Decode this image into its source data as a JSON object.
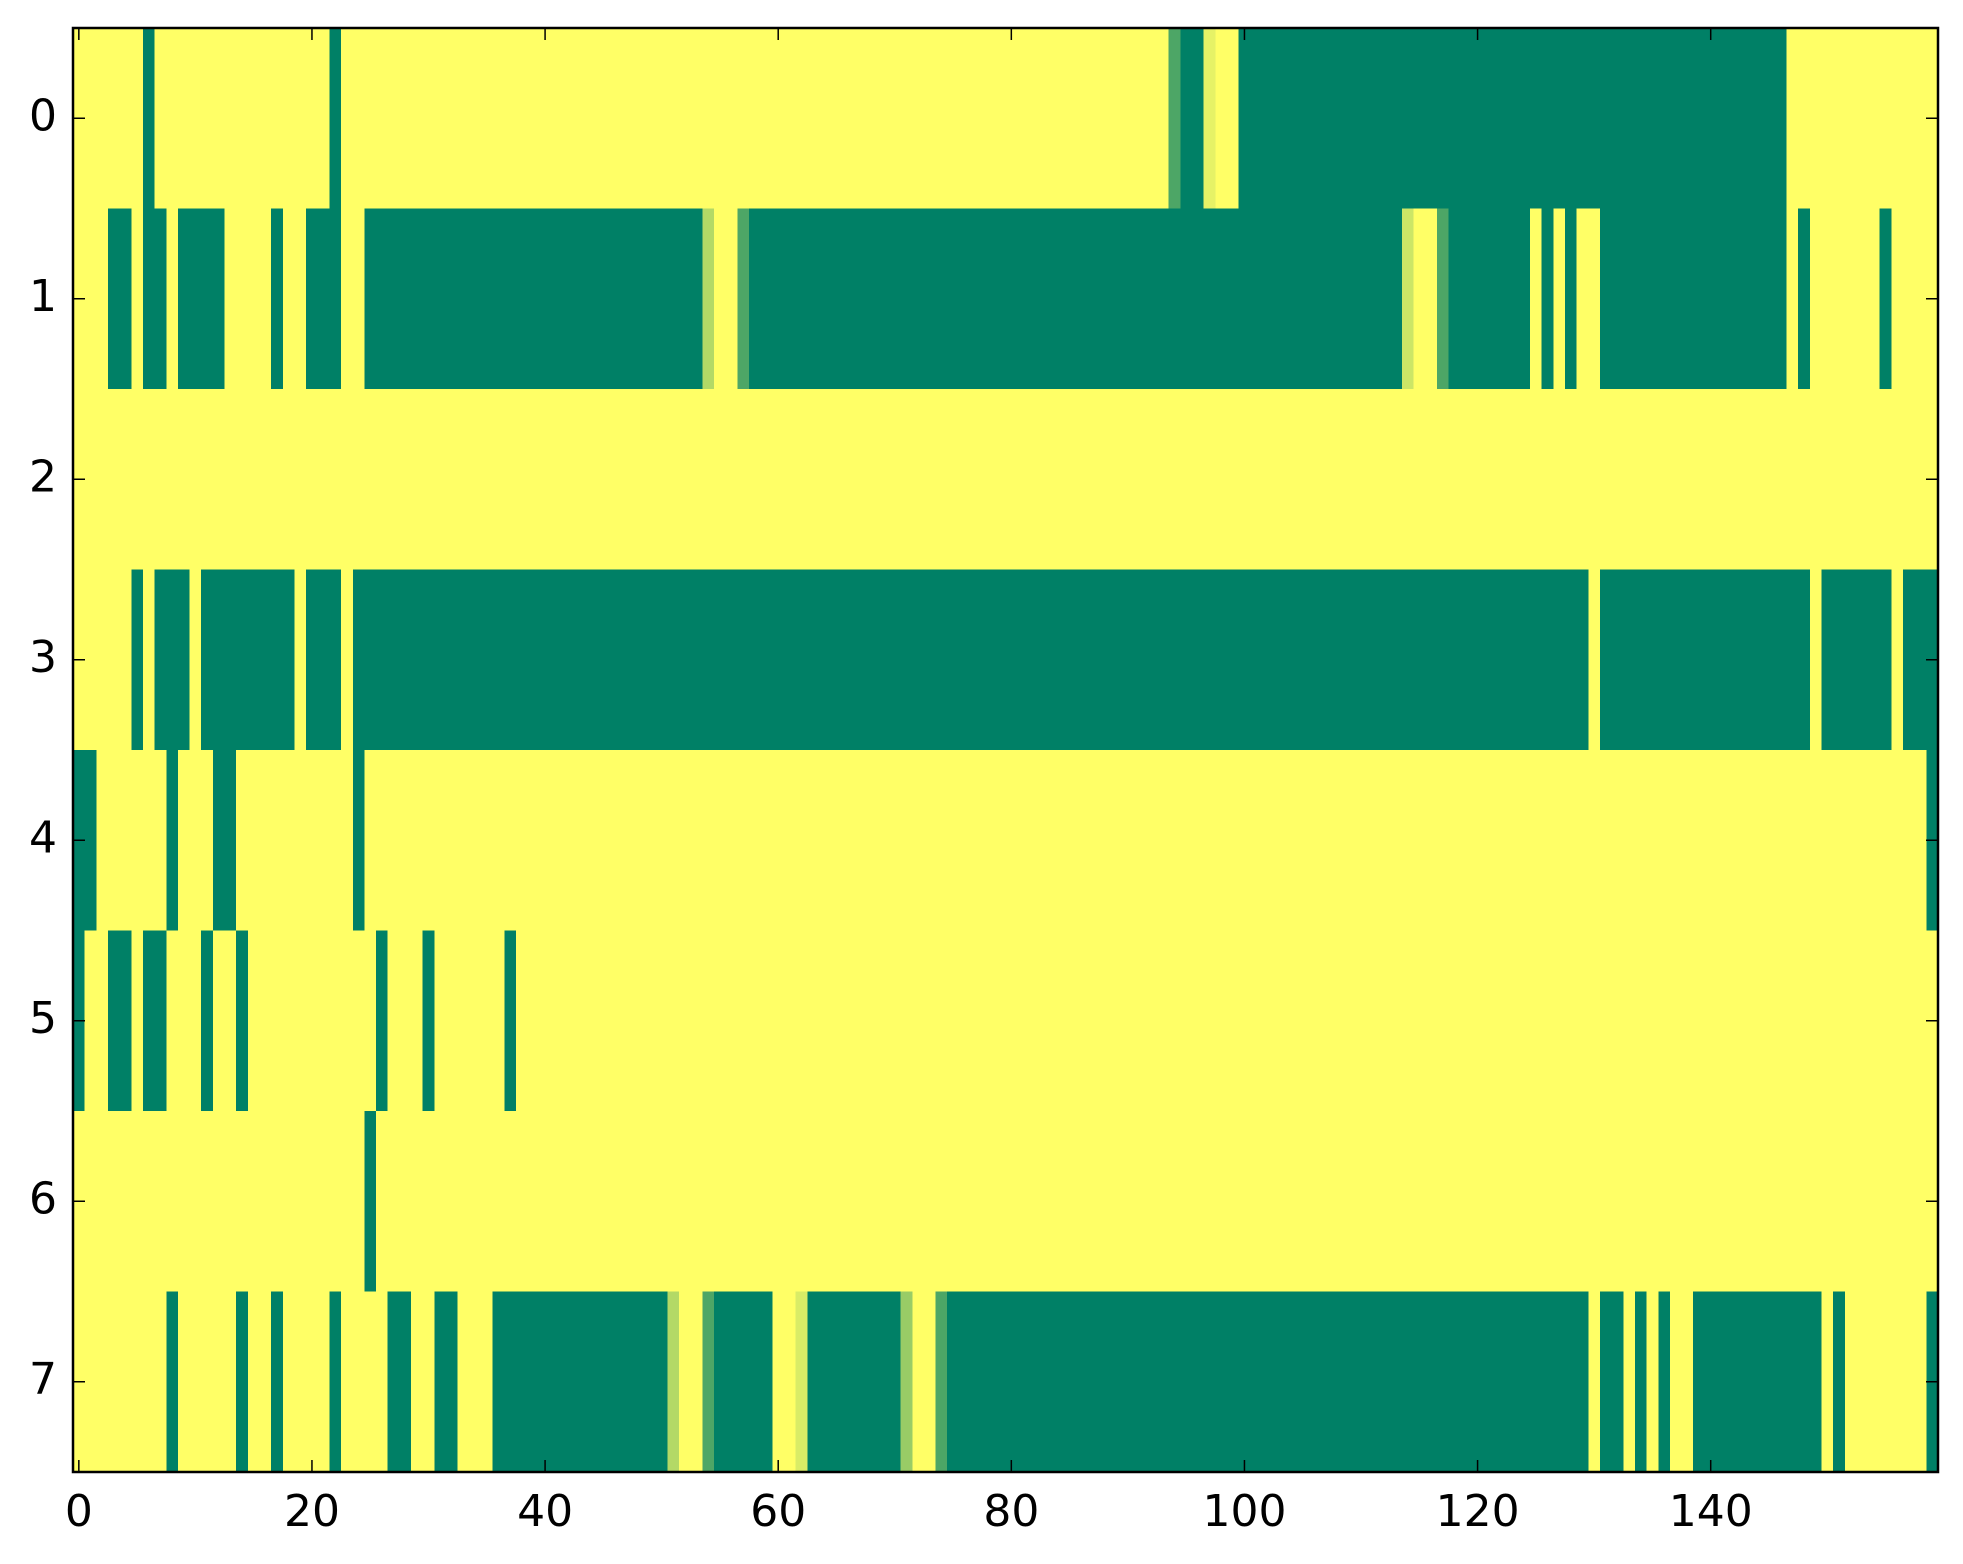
{
  "chart_data": {
    "type": "heatmap",
    "colors": [
      "#008066",
      "#ffff66"
    ],
    "clim": [
      0,
      1
    ],
    "xlim": [
      -0.5,
      159.5
    ],
    "ylim": [
      -0.5,
      7.5
    ],
    "xticks": [
      0,
      20,
      40,
      60,
      80,
      100,
      120,
      140
    ],
    "yticks": [
      0,
      1,
      2,
      3,
      4,
      5,
      6,
      7
    ],
    "z": [
      [
        1,
        1,
        1,
        1,
        1,
        1,
        0,
        1,
        1,
        1,
        1,
        1,
        1,
        1,
        1,
        1,
        1,
        1,
        1,
        1,
        1,
        1,
        0,
        1,
        1,
        1,
        1,
        1,
        1,
        1,
        1,
        1,
        1,
        1,
        1,
        1,
        1,
        1,
        1,
        1,
        1,
        1,
        1,
        1,
        1,
        1,
        1,
        1,
        1,
        1,
        1,
        1,
        1,
        1,
        1,
        1,
        1,
        1,
        1,
        1,
        1,
        1,
        1,
        1,
        1,
        1,
        1,
        1,
        1,
        1,
        1,
        1,
        1,
        1,
        1,
        1,
        1,
        1,
        1,
        1,
        1,
        1,
        1,
        1,
        1,
        1,
        1,
        1,
        1,
        1,
        1,
        1,
        1,
        1,
        0.3,
        0,
        0,
        0.9,
        1,
        1,
        0,
        0,
        0,
        0,
        0,
        0,
        0,
        0,
        0,
        0,
        0,
        0,
        0,
        0,
        0,
        0,
        0,
        0,
        0,
        0,
        0,
        0,
        0,
        0,
        0,
        0,
        0,
        0,
        0,
        0,
        0,
        0,
        0,
        0,
        0,
        0,
        0,
        0,
        0,
        0,
        0,
        0,
        0,
        0,
        0,
        0,
        0,
        1,
        1,
        1,
        1,
        1,
        1,
        1,
        1,
        1,
        1,
        1,
        1,
        1
      ],
      [
        1,
        1,
        1,
        0,
        0,
        1,
        0,
        0,
        1,
        0,
        0,
        0,
        0,
        1,
        1,
        1,
        1,
        0,
        1,
        1,
        0,
        0,
        0,
        1,
        1,
        0,
        0,
        0,
        0,
        0,
        0,
        0,
        0,
        0,
        0,
        0,
        0,
        0,
        0,
        0,
        0,
        0,
        0,
        0,
        0,
        0,
        0,
        0,
        0,
        0,
        0,
        0,
        0,
        0,
        0.7,
        1,
        1,
        0.3,
        0,
        0,
        0,
        0,
        0,
        0,
        0,
        0,
        0,
        0,
        0,
        0,
        0,
        0,
        0,
        0,
        0,
        0,
        0,
        0,
        0,
        0,
        0,
        0,
        0,
        0,
        0,
        0,
        0,
        0,
        0,
        0,
        0,
        0,
        0,
        0,
        0,
        0,
        0,
        0,
        0,
        0,
        0,
        0,
        0,
        0,
        0,
        0,
        0,
        0,
        0,
        0,
        0,
        0,
        0,
        0,
        0.8,
        1,
        1,
        0.3,
        0,
        0,
        0,
        0,
        0,
        0,
        0,
        1,
        0,
        1,
        0,
        1,
        1,
        0,
        0,
        0,
        0,
        0,
        0,
        0,
        0,
        0,
        0,
        0,
        0,
        0,
        0,
        0,
        0,
        1,
        0,
        1,
        1,
        1,
        1,
        1,
        1,
        0,
        1,
        1,
        1,
        1
      ],
      [
        1,
        1,
        1,
        1,
        1,
        1,
        1,
        1,
        1,
        1,
        1,
        1,
        1,
        1,
        1,
        1,
        1,
        1,
        1,
        1,
        1,
        1,
        1,
        1,
        1,
        1,
        1,
        1,
        1,
        1,
        1,
        1,
        1,
        1,
        1,
        1,
        1,
        1,
        1,
        1,
        1,
        1,
        1,
        1,
        1,
        1,
        1,
        1,
        1,
        1,
        1,
        1,
        1,
        1,
        1,
        1,
        1,
        1,
        1,
        1,
        1,
        1,
        1,
        1,
        1,
        1,
        1,
        1,
        1,
        1,
        1,
        1,
        1,
        1,
        1,
        1,
        1,
        1,
        1,
        1,
        1,
        1,
        1,
        1,
        1,
        1,
        1,
        1,
        1,
        1,
        1,
        1,
        1,
        1,
        1,
        1,
        1,
        1,
        1,
        1,
        1,
        1,
        1,
        1,
        1,
        1,
        1,
        1,
        1,
        1,
        1,
        1,
        1,
        1,
        1,
        1,
        1,
        1,
        1,
        1,
        1,
        1,
        1,
        1,
        1,
        1,
        1,
        1,
        1,
        1,
        1,
        1,
        1,
        1,
        1,
        1,
        1,
        1,
        1,
        1,
        1,
        1,
        1,
        1,
        1,
        1,
        1,
        1,
        1,
        1,
        1,
        1,
        1,
        1,
        1,
        1,
        1,
        1,
        1,
        1
      ],
      [
        1,
        1,
        1,
        1,
        1,
        0,
        1,
        0,
        0,
        0,
        1,
        0,
        0,
        0,
        0,
        0,
        0,
        0,
        0,
        1,
        0,
        0,
        0,
        1,
        0,
        0,
        0,
        0,
        0,
        0,
        0,
        0,
        0,
        0,
        0,
        0,
        0,
        0,
        0,
        0,
        0,
        0,
        0,
        0,
        0,
        0,
        0,
        0,
        0,
        0,
        0,
        0,
        0,
        0,
        0,
        0,
        0,
        0,
        0,
        0,
        0,
        0,
        0,
        0,
        0,
        0,
        0,
        0,
        0,
        0,
        0,
        0,
        0,
        0,
        0,
        0,
        0,
        0,
        0,
        0,
        0,
        0,
        0,
        0,
        0,
        0,
        0,
        0,
        0,
        0,
        0,
        0,
        0,
        0,
        0,
        0,
        0,
        0,
        0,
        0,
        0,
        0,
        0,
        0,
        0,
        0,
        0,
        0,
        0,
        0,
        0,
        0,
        0,
        0,
        0,
        0,
        0,
        0,
        0,
        0,
        0,
        0,
        0,
        0,
        0,
        0,
        0,
        0,
        0,
        0,
        1,
        0,
        0,
        0,
        0,
        0,
        0,
        0,
        0,
        0,
        0,
        0,
        0,
        0,
        0,
        0,
        0,
        0,
        0,
        1,
        0,
        0,
        0,
        0,
        0,
        0,
        1,
        0,
        0,
        0
      ],
      [
        0,
        0,
        1,
        1,
        1,
        1,
        1,
        1,
        0,
        1,
        1,
        1,
        0,
        0,
        1,
        1,
        1,
        1,
        1,
        1,
        1,
        1,
        1,
        1,
        0,
        1,
        1,
        1,
        1,
        1,
        1,
        1,
        1,
        1,
        1,
        1,
        1,
        1,
        1,
        1,
        1,
        1,
        1,
        1,
        1,
        1,
        1,
        1,
        1,
        1,
        1,
        1,
        1,
        1,
        1,
        1,
        1,
        1,
        1,
        1,
        1,
        1,
        1,
        1,
        1,
        1,
        1,
        1,
        1,
        1,
        1,
        1,
        1,
        1,
        1,
        1,
        1,
        1,
        1,
        1,
        1,
        1,
        1,
        1,
        1,
        1,
        1,
        1,
        1,
        1,
        1,
        1,
        1,
        1,
        1,
        1,
        1,
        1,
        1,
        1,
        1,
        1,
        1,
        1,
        1,
        1,
        1,
        1,
        1,
        1,
        1,
        1,
        1,
        1,
        1,
        1,
        1,
        1,
        1,
        1,
        1,
        1,
        1,
        1,
        1,
        1,
        1,
        1,
        1,
        1,
        1,
        1,
        1,
        1,
        1,
        1,
        1,
        1,
        1,
        1,
        1,
        1,
        1,
        1,
        1,
        1,
        1,
        1,
        1,
        1,
        1,
        1,
        1,
        1,
        1,
        1,
        1,
        1,
        1,
        0
      ],
      [
        0,
        1,
        1,
        0,
        0,
        1,
        0,
        0,
        1,
        1,
        1,
        0,
        1,
        1,
        0,
        1,
        1,
        1,
        1,
        1,
        1,
        1,
        1,
        1,
        1,
        1,
        0,
        1,
        1,
        1,
        0,
        1,
        1,
        1,
        1,
        1,
        1,
        0,
        1,
        1,
        1,
        1,
        1,
        1,
        1,
        1,
        1,
        1,
        1,
        1,
        1,
        1,
        1,
        1,
        1,
        1,
        1,
        1,
        1,
        1,
        1,
        1,
        1,
        1,
        1,
        1,
        1,
        1,
        1,
        1,
        1,
        1,
        1,
        1,
        1,
        1,
        1,
        1,
        1,
        1,
        1,
        1,
        1,
        1,
        1,
        1,
        1,
        1,
        1,
        1,
        1,
        1,
        1,
        1,
        1,
        1,
        1,
        1,
        1,
        1,
        1,
        1,
        1,
        1,
        1,
        1,
        1,
        1,
        1,
        1,
        1,
        1,
        1,
        1,
        1,
        1,
        1,
        1,
        1,
        1,
        1,
        1,
        1,
        1,
        1,
        1,
        1,
        1,
        1,
        1,
        1,
        1,
        1,
        1,
        1,
        1,
        1,
        1,
        1,
        1,
        1,
        1,
        1,
        1,
        1,
        1,
        1,
        1,
        1,
        1,
        1,
        1,
        1,
        1,
        1,
        1,
        1,
        1,
        1,
        1
      ],
      [
        1,
        1,
        1,
        1,
        1,
        1,
        1,
        1,
        1,
        1,
        1,
        1,
        1,
        1,
        1,
        1,
        1,
        1,
        1,
        1,
        1,
        1,
        1,
        1,
        1,
        0,
        1,
        1,
        1,
        1,
        1,
        1,
        1,
        1,
        1,
        1,
        1,
        1,
        1,
        1,
        1,
        1,
        1,
        1,
        1,
        1,
        1,
        1,
        1,
        1,
        1,
        1,
        1,
        1,
        1,
        1,
        1,
        1,
        1,
        1,
        1,
        1,
        1,
        1,
        1,
        1,
        1,
        1,
        1,
        1,
        1,
        1,
        1,
        1,
        1,
        1,
        1,
        1,
        1,
        1,
        1,
        1,
        1,
        1,
        1,
        1,
        1,
        1,
        1,
        1,
        1,
        1,
        1,
        1,
        1,
        1,
        1,
        1,
        1,
        1,
        1,
        1,
        1,
        1,
        1,
        1,
        1,
        1,
        1,
        1,
        1,
        1,
        1,
        1,
        1,
        1,
        1,
        1,
        1,
        1,
        1,
        1,
        1,
        1,
        1,
        1,
        1,
        1,
        1,
        1,
        1,
        1,
        1,
        1,
        1,
        1,
        1,
        1,
        1,
        1,
        1,
        1,
        1,
        1,
        1,
        1,
        1,
        1,
        1,
        1,
        1,
        1,
        1,
        1,
        1,
        1,
        1,
        1,
        1,
        1
      ],
      [
        1,
        1,
        1,
        1,
        1,
        1,
        1,
        1,
        0,
        1,
        1,
        1,
        1,
        1,
        0,
        1,
        1,
        0,
        1,
        1,
        1,
        1,
        0,
        1,
        1,
        1,
        1,
        0,
        0,
        1,
        1,
        0,
        0,
        1,
        1,
        1,
        0,
        0,
        0,
        0,
        0,
        0,
        0,
        0,
        0,
        0,
        0,
        0,
        0,
        0,
        0,
        0.7,
        1,
        1,
        0.3,
        0,
        0,
        0,
        0,
        0,
        1,
        1,
        0.85,
        0,
        0,
        0,
        0,
        0,
        0,
        0,
        0,
        0.6,
        1,
        1,
        0.3,
        0,
        0,
        0,
        0,
        0,
        0,
        0,
        0,
        0,
        0,
        0,
        0,
        0,
        0,
        0,
        0,
        0,
        0,
        0,
        0,
        0,
        0,
        0,
        0,
        0,
        0,
        0,
        0,
        0,
        0,
        0,
        0,
        0,
        0,
        0,
        0,
        0,
        0,
        0,
        0,
        0,
        0,
        0,
        0,
        0,
        0,
        0,
        0,
        0,
        0,
        0,
        0,
        0,
        0,
        0,
        1,
        0,
        0,
        1,
        0,
        1,
        0,
        1,
        1,
        0,
        0,
        0,
        0,
        0,
        0,
        0,
        0,
        0,
        0,
        0,
        1,
        0,
        1,
        1,
        1,
        1,
        1,
        1,
        1,
        0
      ]
    ]
  }
}
